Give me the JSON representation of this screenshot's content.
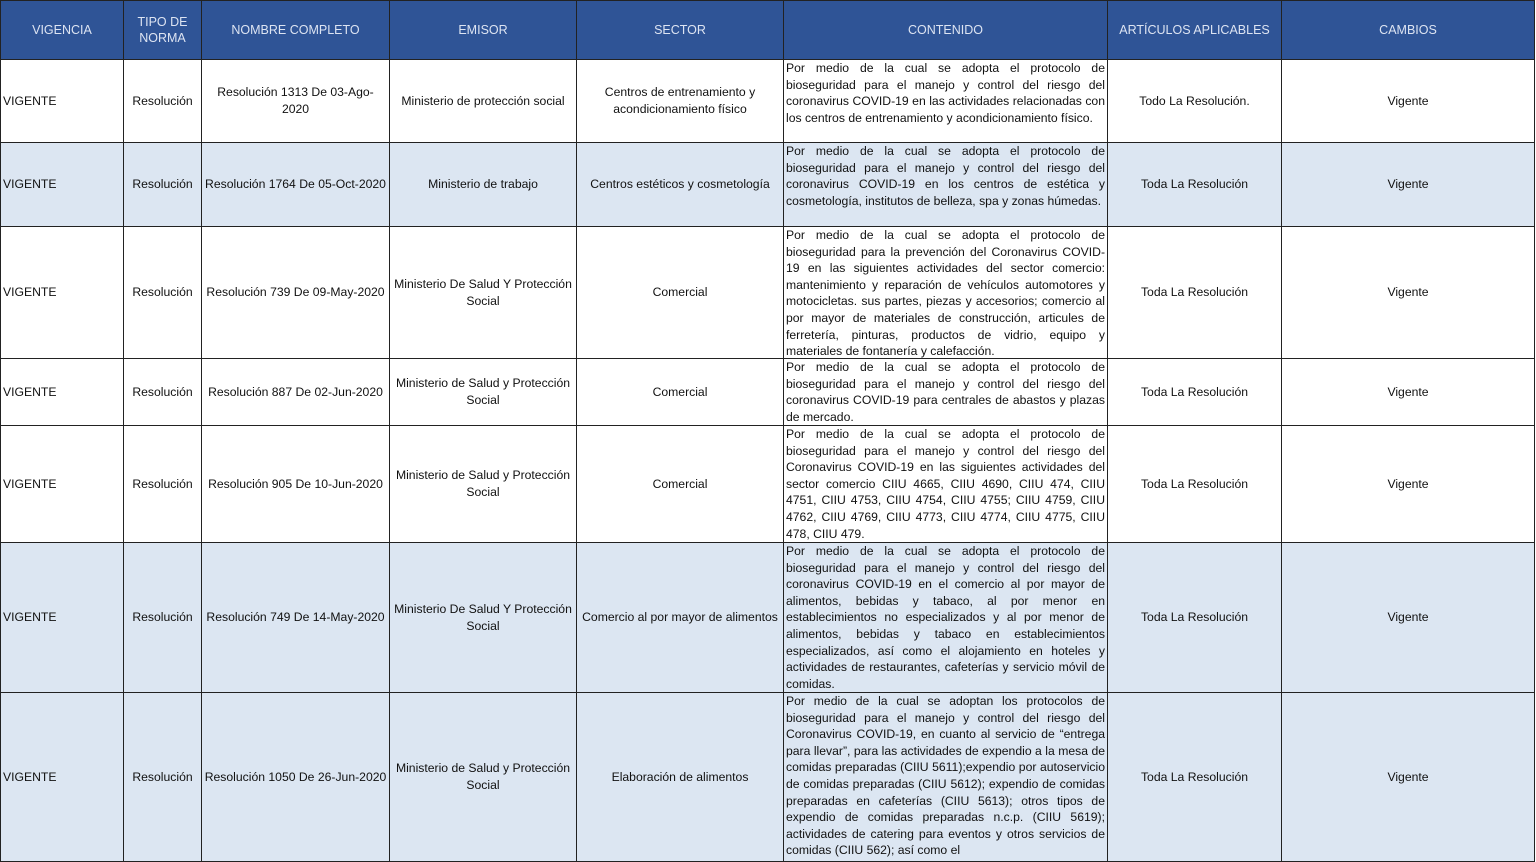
{
  "colors": {
    "header_bg": "#2f5496",
    "header_text": "#dde4f2",
    "alt_row": "#dce6f2"
  },
  "headers": [
    "VIGENCIA",
    "TIPO DE NORMA",
    "NOMBRE COMPLETO",
    "EMISOR",
    "SECTOR",
    "CONTENIDO",
    "ARTÍCULOS APLICABLES",
    "CAMBIOS"
  ],
  "rows": [
    {
      "vigencia": "VIGENTE",
      "tipo": "Resolución",
      "nombre": "Resolución 1313 De 03-Ago-2020",
      "emisor": "Ministerio de protección social",
      "sector": "Centros de entrenamiento y acondicionamiento físico",
      "contenido": "Por medio de la cual se adopta el protocolo de bioseguridad para el manejo y control del riesgo del coronavirus COVID-19 en las actividades relacionadas con los centros de entrenamiento y acondicionamiento físico.",
      "articulos": "Todo La Resolución.",
      "cambios": "Vigente",
      "shaded": false
    },
    {
      "vigencia": "VIGENTE",
      "tipo": "Resolución",
      "nombre": "Resolución 1764 De 05-Oct-2020",
      "emisor": "Ministerio de trabajo",
      "sector": "Centros estéticos y cosmetología",
      "contenido": "Por medio de la cual se adopta el protocolo de bioseguridad para el manejo y control del riesgo del coronavirus COVID-19 en los centros de estética y cosmetología, institutos de belleza, spa y zonas húmedas.",
      "articulos": "Toda La Resolución",
      "cambios": "Vigente",
      "shaded": true
    },
    {
      "vigencia": "VIGENTE",
      "tipo": "Resolución",
      "nombre": "Resolución 739 De 09-May-2020",
      "emisor": "Ministerio De Salud Y Protección Social",
      "sector": "Comercial",
      "contenido": "Por medio de la cual se adopta el protocolo de bioseguridad para la prevención del Coronavirus COVID-19 en las siguientes actividades del sector comercio: mantenimiento y reparación de vehículos automotores y motocicletas. sus partes, piezas y accesorios; comercio al por mayor de materiales de construcción, articules de ferretería, pinturas, productos de vidrio, equipo y materiales de fontanería y calefacción.",
      "articulos": "Toda La Resolución",
      "cambios": "Vigente",
      "shaded": false
    },
    {
      "vigencia": "VIGENTE",
      "tipo": "Resolución",
      "nombre": "Resolución 887 De 02-Jun-2020",
      "emisor": "Ministerio de Salud y Protección Social",
      "sector": "Comercial",
      "contenido": "Por medio de la cual se adopta el protocolo de bioseguridad para el manejo y control del riesgo del coronavirus COVID-19 para centrales de abastos y plazas de mercado.",
      "articulos": "Toda La Resolución",
      "cambios": "Vigente",
      "shaded": false
    },
    {
      "vigencia": "VIGENTE",
      "tipo": "Resolución",
      "nombre": "Resolución 905 De 10-Jun-2020",
      "emisor": "Ministerio de Salud y Protección Social",
      "sector": "Comercial",
      "contenido": "Por medio de la cual se adopta el protocolo de bioseguridad para el manejo y control del riesgo del Coronavirus COVID-19 en las siguientes actividades del sector comercio CIIU 4665, CIIU 4690, CIIU 474, CIIU 4751, CIIU 4753, CIIU 4754, CIIU 4755; CIIU 4759, CIIU 4762, CIIU 4769, CIIU 4773, CIIU 4774, CIIU 4775, CIIU 478, CIIU 479.",
      "articulos": "Toda La Resolución",
      "cambios": "Vigente",
      "shaded": false
    },
    {
      "vigencia": "VIGENTE",
      "tipo": "Resolución",
      "nombre": "Resolución 749 De 14-May-2020",
      "emisor": "Ministerio De Salud Y Protección Social",
      "sector": "Comercio al por mayor de alimentos",
      "contenido": "Por medio de la cual se adopta el protocolo de bioseguridad para el manejo y control del riesgo del coronavirus COVID-19 en el comercio al por mayor de alimentos, bebidas y tabaco, al por menor en establecimientos no especializados y al por menor de alimentos, bebidas y tabaco en establecimientos especializados, así como el alojamiento en hoteles y actividades de restaurantes, cafeterías y servicio móvil de comidas.",
      "articulos": "Toda La Resolución",
      "cambios": "Vigente",
      "shaded": true
    },
    {
      "vigencia": "VIGENTE",
      "tipo": "Resolución",
      "nombre": "Resolución 1050 De 26-Jun-2020",
      "emisor": "Ministerio de Salud y Protección Social",
      "sector": "Elaboración de alimentos",
      "contenido": "Por medio de la cual se adoptan los protocolos de bioseguridad para el manejo y control del riesgo del Coronavirus COVID-19, en cuanto al servicio de “entrega para llevar”, para las actividades de expendio a la mesa de comidas preparadas (CIIU 5611);expendio por autoservicio de comidas preparadas (CIIU 5612); expendio de comidas preparadas en cafeterías (CIIU 5613); otros tipos de expendio de comidas preparadas n.c.p. (CIIU 5619); actividades de catering para eventos y otros servicios de comidas (CIIU 562); así como el",
      "articulos": "Toda La Resolución",
      "cambios": "Vigente",
      "shaded": true
    }
  ]
}
